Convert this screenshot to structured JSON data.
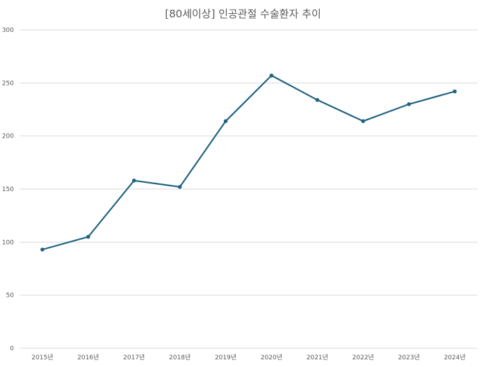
{
  "chart_data": {
    "type": "line",
    "title": "[80세이상] 인공관절 수술환자 추이",
    "xlabel": "",
    "ylabel": "",
    "categories": [
      "2015년",
      "2016년",
      "2017년",
      "2018년",
      "2019년",
      "2020년",
      "2021년",
      "2022년",
      "2023년",
      "2024년"
    ],
    "series": [
      {
        "name": "",
        "values": [
          93,
          105,
          158,
          152,
          214,
          257,
          234,
          214,
          230,
          242
        ]
      }
    ],
    "ylim": [
      0,
      300
    ],
    "yticks": [
      "0",
      "50",
      "100",
      "150",
      "200",
      "250",
      "300"
    ],
    "grid": true,
    "legend": "none",
    "colors": {
      "line": "#1f6381",
      "grid": "#d9d9d9",
      "text": "#595959"
    }
  }
}
